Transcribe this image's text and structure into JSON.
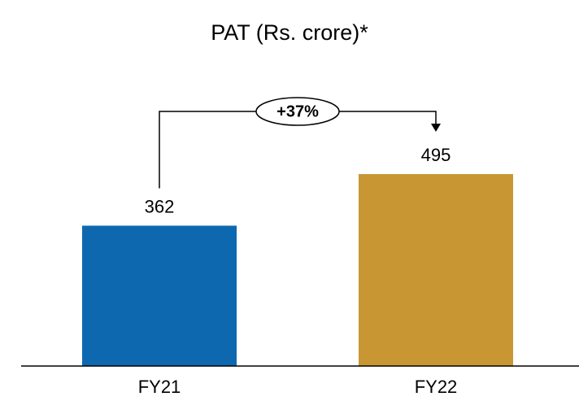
{
  "chart_data": {
    "type": "bar",
    "title": "PAT (Rs. crore)*",
    "categories": [
      "FY21",
      "FY22"
    ],
    "values": [
      362,
      495
    ],
    "colors": [
      "#0d68b0",
      "#c89633"
    ],
    "annotation": "+37%",
    "ylim": [
      0,
      600
    ]
  }
}
